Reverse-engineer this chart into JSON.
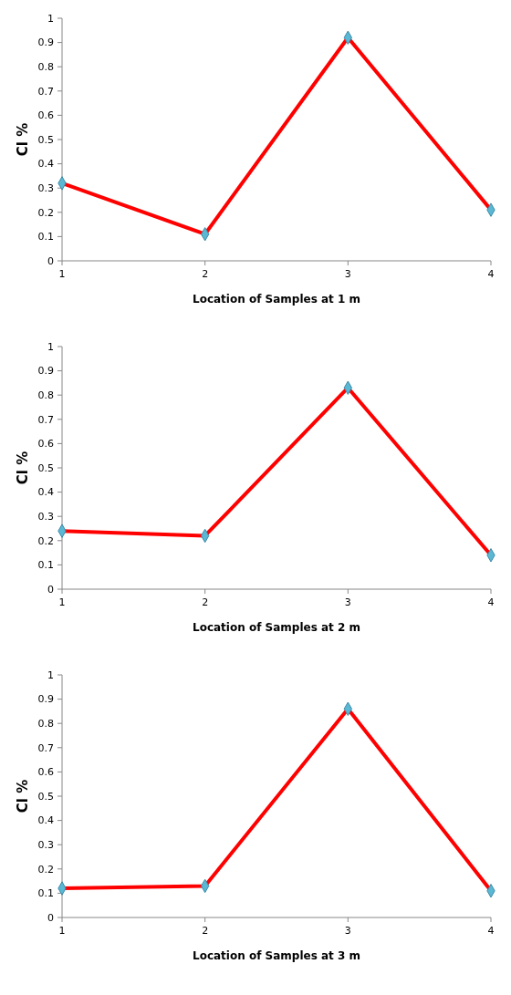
{
  "chart_data": [
    {
      "type": "line",
      "ylabel": "Cl %",
      "xlabel": "Location of Samples at 1 m",
      "x": [
        1,
        2,
        3,
        4
      ],
      "xlim": [
        1,
        4
      ],
      "xticks": [
        1,
        2,
        3,
        4
      ],
      "ylim": [
        0,
        1
      ],
      "yticks": [
        0,
        0.1,
        0.2,
        0.3,
        0.4,
        0.5,
        0.6,
        0.7,
        0.8,
        0.9,
        1
      ],
      "grid": false,
      "marker": "diamond",
      "line_style": "solid",
      "series": [
        {
          "color": "#ff0000",
          "values": [
            0.32,
            0.11,
            0.92,
            0.21
          ]
        }
      ]
    },
    {
      "type": "line",
      "ylabel": "Cl %",
      "xlabel": "Location of Samples at 2 m",
      "x": [
        1,
        2,
        3,
        4
      ],
      "xlim": [
        1,
        4
      ],
      "xticks": [
        1,
        2,
        3,
        4
      ],
      "ylim": [
        0,
        1
      ],
      "yticks": [
        0,
        0.1,
        0.2,
        0.3,
        0.4,
        0.5,
        0.6,
        0.7,
        0.8,
        0.9,
        1
      ],
      "grid": false,
      "marker": "diamond",
      "line_style": "solid",
      "series": [
        {
          "color": "#ff0000",
          "values": [
            0.24,
            0.22,
            0.83,
            0.14
          ]
        }
      ]
    },
    {
      "type": "line",
      "ylabel": "Cl %",
      "xlabel": "Location of Samples at 3 m",
      "x": [
        1,
        2,
        3,
        4
      ],
      "xlim": [
        1,
        4
      ],
      "xticks": [
        1,
        2,
        3,
        4
      ],
      "ylim": [
        0,
        1
      ],
      "yticks": [
        0,
        0.1,
        0.2,
        0.3,
        0.4,
        0.5,
        0.6,
        0.7,
        0.8,
        0.9,
        1
      ],
      "grid": false,
      "marker": "diamond",
      "line_style": "solid",
      "series": [
        {
          "color": "#ff0000",
          "values": [
            0.12,
            0.13,
            0.86,
            0.11
          ]
        }
      ]
    }
  ]
}
